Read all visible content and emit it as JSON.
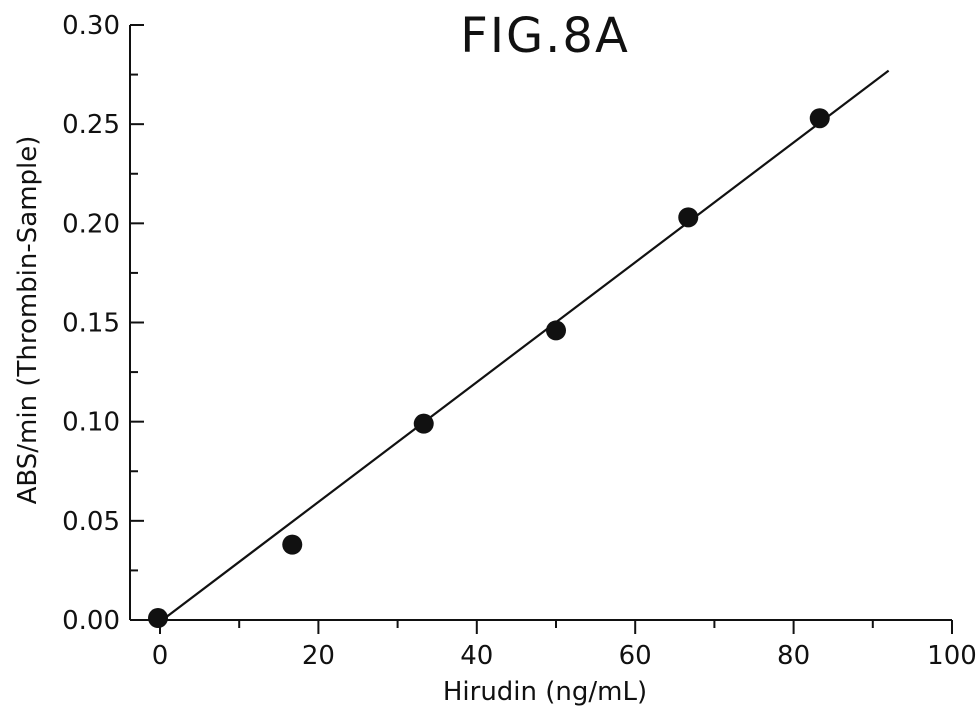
{
  "chart_data": {
    "type": "scatter",
    "title": "FIG.8A",
    "xlabel": "Hirudin (ng/mL)",
    "ylabel": "ABS/min (Thrombin-Sample)",
    "xlim": [
      0,
      100
    ],
    "ylim": [
      0,
      0.3
    ],
    "x_ticks": [
      "0",
      "20",
      "40",
      "60",
      "80",
      "100"
    ],
    "y_ticks": [
      "0.00",
      "0.05",
      "0.10",
      "0.15",
      "0.20",
      "0.25",
      "0.30"
    ],
    "points": [
      {
        "x": 0,
        "y": 0.001
      },
      {
        "x": 16.7,
        "y": 0.038
      },
      {
        "x": 33.3,
        "y": 0.099
      },
      {
        "x": 50.0,
        "y": 0.146
      },
      {
        "x": 66.7,
        "y": 0.203
      },
      {
        "x": 83.3,
        "y": 0.253
      }
    ],
    "fit_line": {
      "x_start": 0.3,
      "y_start": 0.0,
      "x_end": 92.0,
      "y_end": 0.277
    },
    "grid": false,
    "legend": "none",
    "colors": {
      "ink": "#111111",
      "background": "#ffffff"
    }
  }
}
